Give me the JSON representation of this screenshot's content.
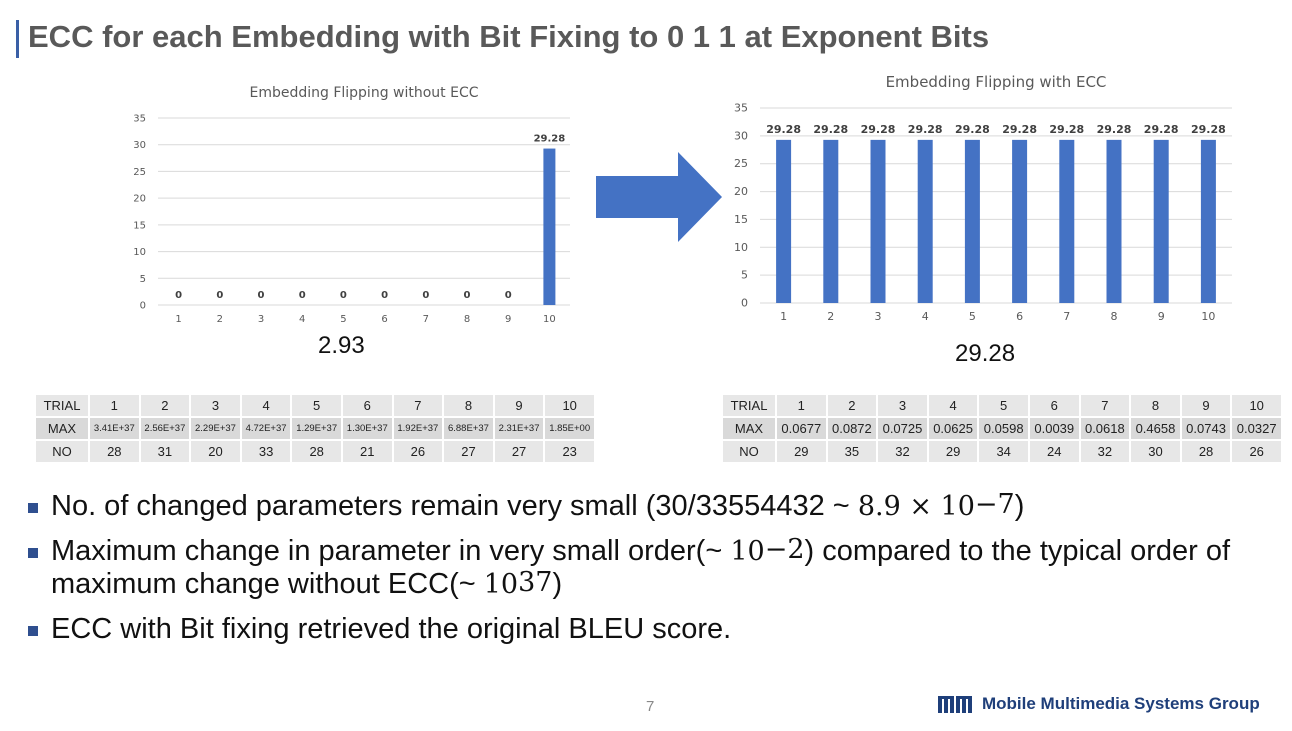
{
  "slide": {
    "title": "ECC for each Embedding with Bit Fixing to 0 1 1 at Exponent Bits",
    "page_number": "7",
    "logo_text": "Mobile Multimedia Systems Group"
  },
  "chart_data": [
    {
      "type": "bar",
      "title": "Embedding Flipping without ECC",
      "categories": [
        "1",
        "2",
        "3",
        "4",
        "5",
        "6",
        "7",
        "8",
        "9",
        "10"
      ],
      "values": [
        0,
        0,
        0,
        0,
        0,
        0,
        0,
        0,
        0,
        29.28
      ],
      "data_labels": [
        "0",
        "0",
        "0",
        "0",
        "0",
        "0",
        "0",
        "0",
        "0",
        "29.28"
      ],
      "ylim": [
        0,
        35
      ],
      "yticks": [
        "0",
        "5",
        "10",
        "15",
        "20",
        "25",
        "30",
        "35"
      ],
      "grid": true,
      "bar_color": "#4472c4",
      "xlabel": "",
      "ylabel": ""
    },
    {
      "type": "bar",
      "title": "Embedding Flipping with ECC",
      "categories": [
        "1",
        "2",
        "3",
        "4",
        "5",
        "6",
        "7",
        "8",
        "9",
        "10"
      ],
      "values": [
        29.28,
        29.28,
        29.28,
        29.28,
        29.28,
        29.28,
        29.28,
        29.28,
        29.28,
        29.28
      ],
      "data_labels": [
        "29.28",
        "29.28",
        "29.28",
        "29.28",
        "29.28",
        "29.28",
        "29.28",
        "29.28",
        "29.28",
        "29.28"
      ],
      "ylim": [
        0,
        35
      ],
      "yticks": [
        "0",
        "5",
        "10",
        "15",
        "20",
        "25",
        "30",
        "35"
      ],
      "grid": true,
      "bar_color": "#4472c4",
      "xlabel": "",
      "ylabel": ""
    }
  ],
  "captions": {
    "left": "2.93",
    "right": "29.28"
  },
  "arrow": {
    "color": "#4472c4",
    "direction": "right"
  },
  "tables": {
    "left": {
      "rows": [
        [
          "TRIAL",
          "1",
          "2",
          "3",
          "4",
          "5",
          "6",
          "7",
          "8",
          "9",
          "10"
        ],
        [
          "MAX",
          "3.41E+37",
          "2.56E+37",
          "2.29E+37",
          "4.72E+37",
          "1.29E+37",
          "1.30E+37",
          "1.92E+37",
          "6.88E+37",
          "2.31E+37",
          "1.85E+00"
        ],
        [
          "NO",
          "28",
          "31",
          "20",
          "33",
          "28",
          "21",
          "26",
          "27",
          "27",
          "23"
        ]
      ]
    },
    "right": {
      "rows": [
        [
          "TRIAL",
          "1",
          "2",
          "3",
          "4",
          "5",
          "6",
          "7",
          "8",
          "9",
          "10"
        ],
        [
          "MAX",
          "0.0677",
          "0.0872",
          "0.0725",
          "0.0625",
          "0.0598",
          "0.0039",
          "0.0618",
          "0.4658",
          "0.0743",
          "0.0327"
        ],
        [
          "NO",
          "29",
          "35",
          "32",
          "29",
          "34",
          "24",
          "32",
          "30",
          "28",
          "26"
        ]
      ]
    }
  },
  "bullets": {
    "b1_text": "No. of changed parameters remain very small (30/33554432 ~ ",
    "b1_math": "8.9 × 10",
    "b1_exp": "−7",
    "b1_end": ")",
    "b2_text": "Maximum change in parameter in very small order(~ ",
    "b2_math": "10",
    "b2_exp": "−2",
    "b2_mid": ") compared to the typical order of maximum change without ECC(~ ",
    "b2_math2": "10",
    "b2_exp2": "37",
    "b2_end": ")",
    "b3_text": "ECC with Bit fixing retrieved the original BLEU score."
  }
}
